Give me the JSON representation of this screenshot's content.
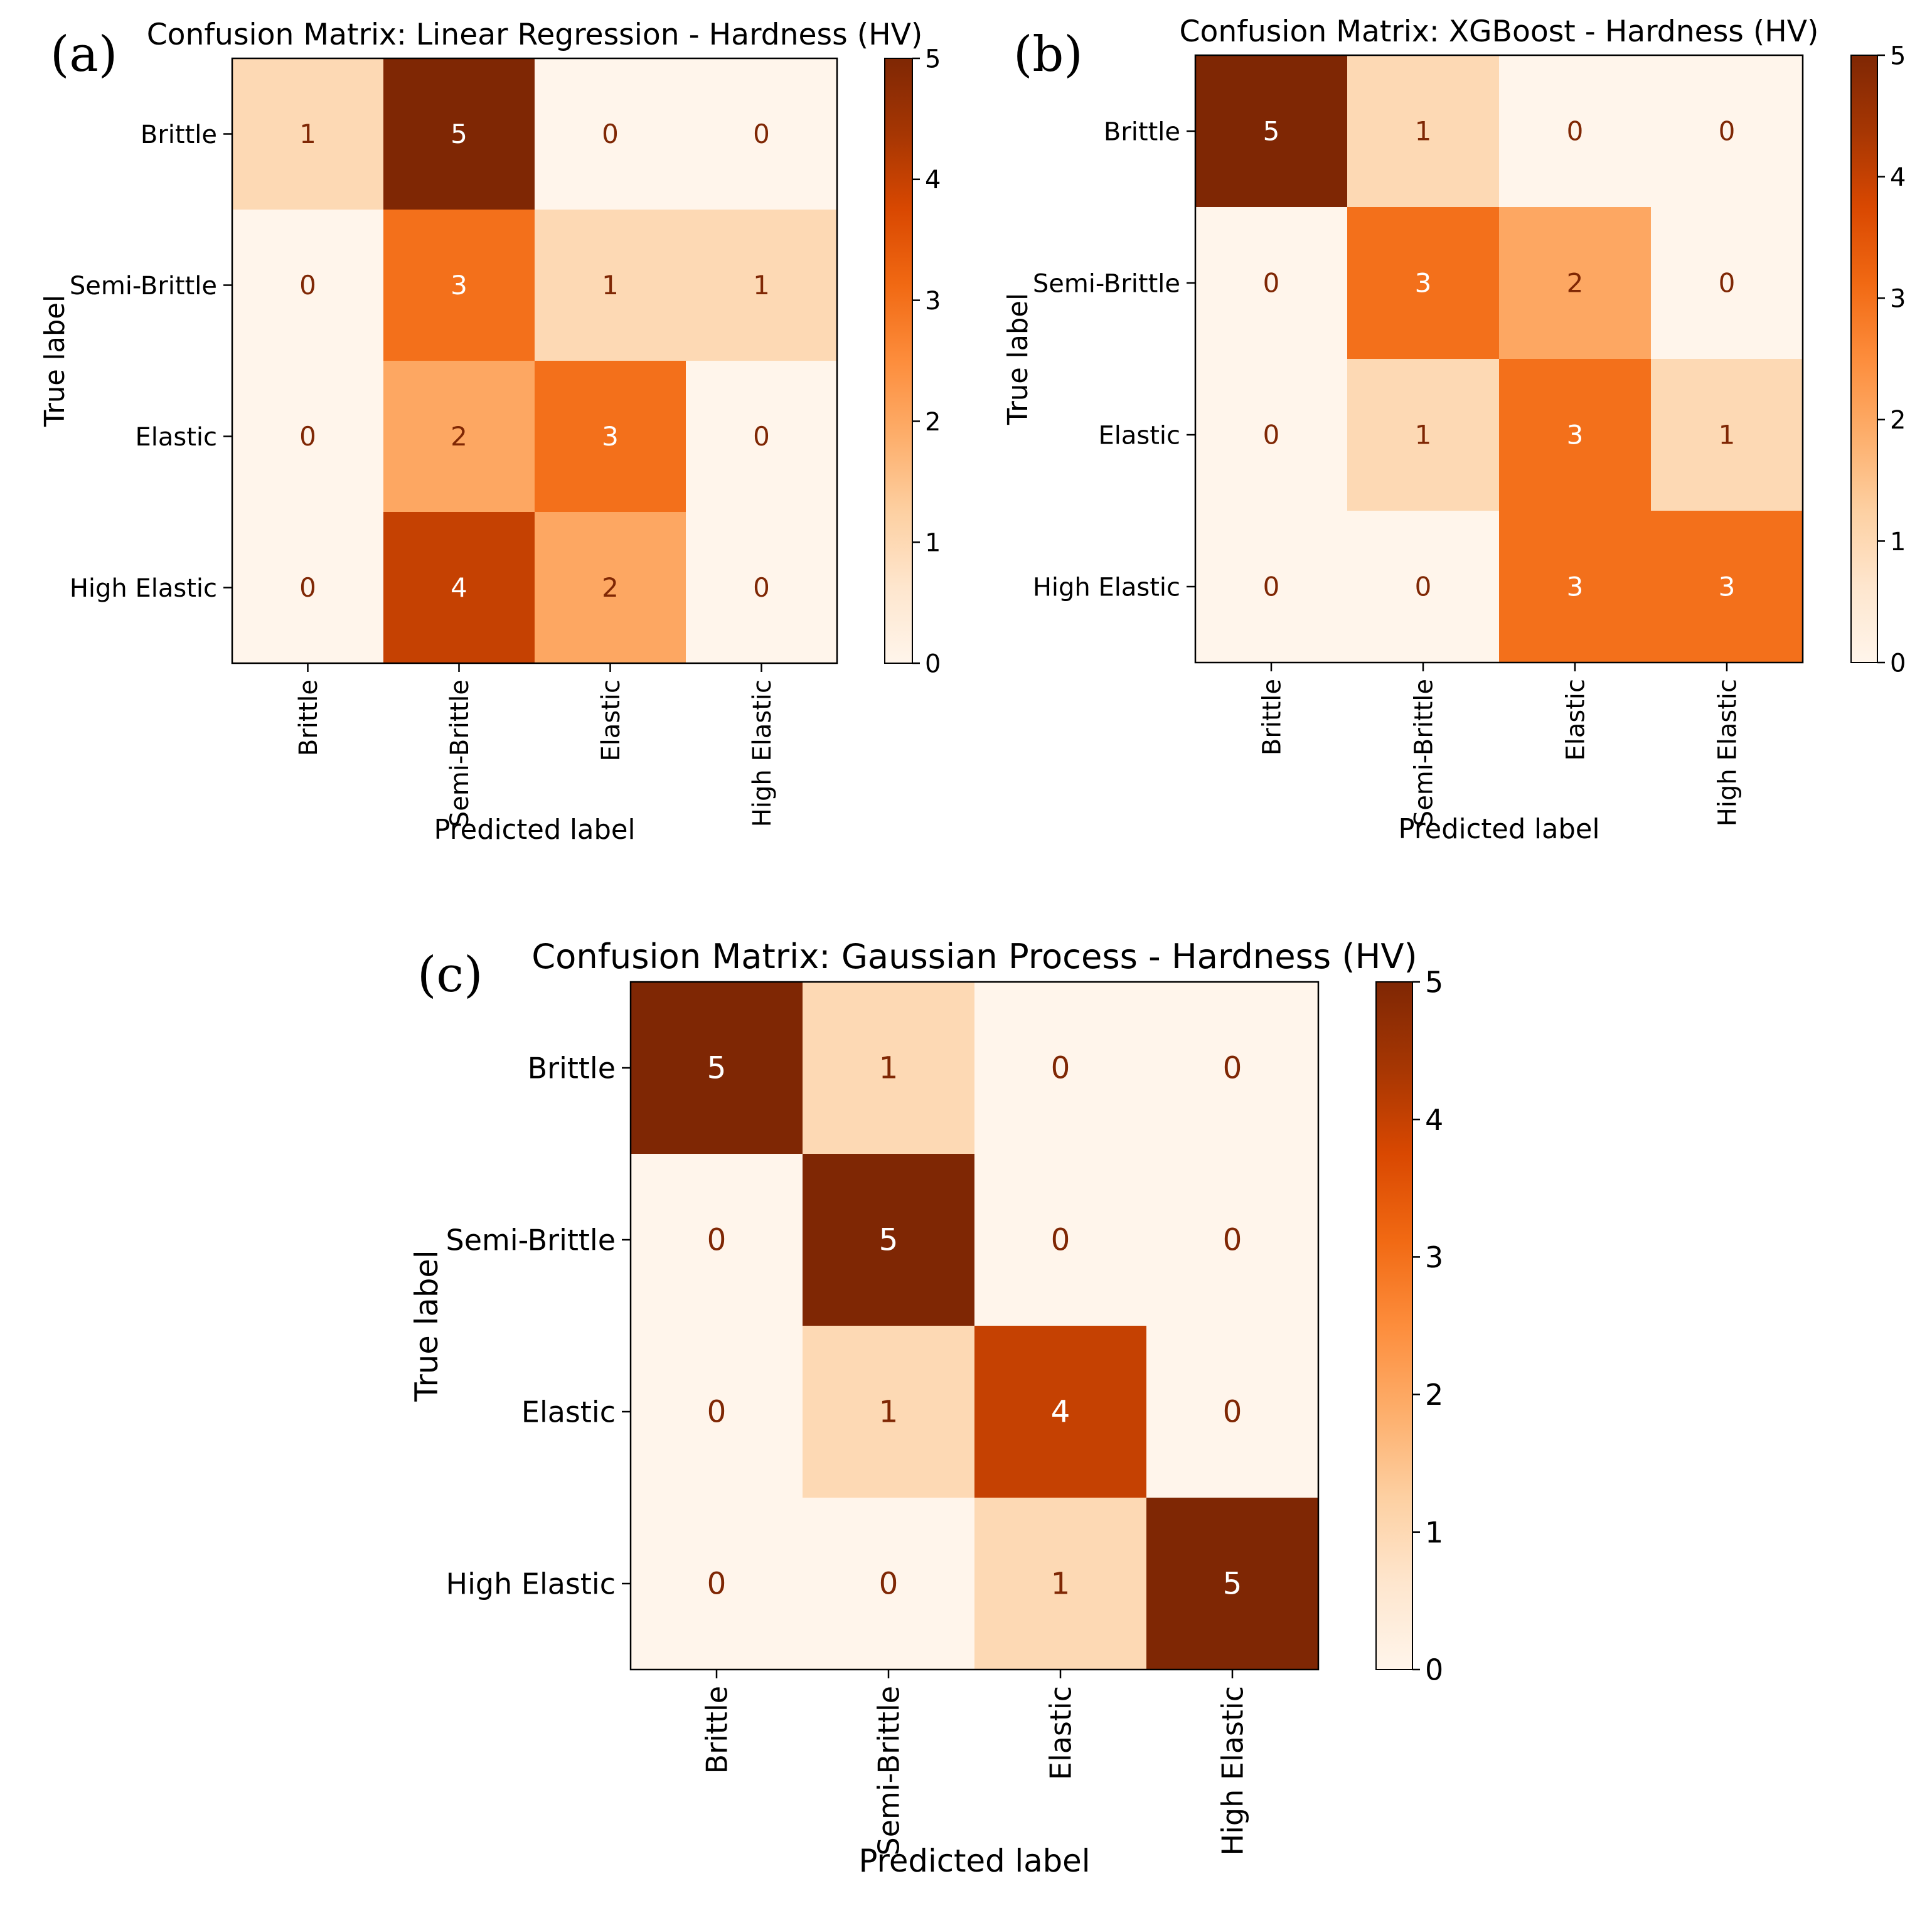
{
  "chart_data": [
    {
      "type": "heatmap",
      "panel_label": "(a)",
      "title": "Confusion Matrix: Linear Regression - Hardness (HV)",
      "xlabel": "Predicted label",
      "ylabel": "True label",
      "x_categories": [
        "Brittle",
        "Semi-Brittle",
        "Elastic",
        "High Elastic"
      ],
      "y_categories": [
        "Brittle",
        "Semi-Brittle",
        "Elastic",
        "High Elastic"
      ],
      "matrix": [
        [
          1,
          5,
          0,
          0
        ],
        [
          0,
          3,
          1,
          1
        ],
        [
          0,
          2,
          3,
          0
        ],
        [
          0,
          4,
          2,
          0
        ]
      ],
      "colorbar": {
        "min": 0,
        "max": 5,
        "ticks": [
          "0",
          "1",
          "2",
          "3",
          "4",
          "5"
        ],
        "colormap": "Oranges"
      }
    },
    {
      "type": "heatmap",
      "panel_label": "(b)",
      "title": "Confusion Matrix: XGBoost - Hardness (HV)",
      "xlabel": "Predicted label",
      "ylabel": "True label",
      "x_categories": [
        "Brittle",
        "Semi-Brittle",
        "Elastic",
        "High Elastic"
      ],
      "y_categories": [
        "Brittle",
        "Semi-Brittle",
        "Elastic",
        "High Elastic"
      ],
      "matrix": [
        [
          5,
          1,
          0,
          0
        ],
        [
          0,
          3,
          2,
          0
        ],
        [
          0,
          1,
          3,
          1
        ],
        [
          0,
          0,
          3,
          3
        ]
      ],
      "colorbar": {
        "min": 0,
        "max": 5,
        "ticks": [
          "0",
          "1",
          "2",
          "3",
          "4",
          "5"
        ],
        "colormap": "Oranges"
      }
    },
    {
      "type": "heatmap",
      "panel_label": "(c)",
      "title": "Confusion Matrix: Gaussian Process - Hardness (HV)",
      "xlabel": "Predicted label",
      "ylabel": "True label",
      "x_categories": [
        "Brittle",
        "Semi-Brittle",
        "Elastic",
        "High Elastic"
      ],
      "y_categories": [
        "Brittle",
        "Semi-Brittle",
        "Elastic",
        "High Elastic"
      ],
      "matrix": [
        [
          5,
          1,
          0,
          0
        ],
        [
          0,
          5,
          0,
          0
        ],
        [
          0,
          1,
          4,
          0
        ],
        [
          0,
          0,
          1,
          5
        ]
      ],
      "colorbar": {
        "min": 0,
        "max": 5,
        "ticks": [
          "0",
          "1",
          "2",
          "3",
          "4",
          "5"
        ],
        "colormap": "Oranges"
      }
    }
  ],
  "colors": {
    "colormap_stops": [
      "#fff5eb",
      "#fee6ce",
      "#fdd0a2",
      "#fdae6b",
      "#fd8d3c",
      "#f16913",
      "#d94801",
      "#a63603",
      "#7f2704"
    ],
    "text_on_light": "#7f2704",
    "text_on_dark": "#ffffff",
    "axis": "#000000"
  }
}
